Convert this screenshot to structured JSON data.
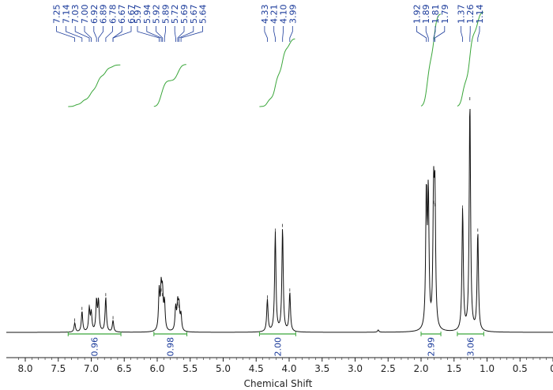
{
  "chart_data": {
    "type": "line",
    "title": "",
    "xlabel": "Chemical Shift",
    "ylabel": "",
    "xlim": [
      8.25,
      0.0
    ],
    "x_reversed": true,
    "grid": false,
    "legend": "none",
    "x_ticks": [
      "8.0",
      "7.5",
      "7.0",
      "6.5",
      "6.0",
      "5.5",
      "5.0",
      "4.5",
      "4.0",
      "3.5",
      "3.0",
      "2.5",
      "2.0",
      "1.5",
      "1.0",
      "0.5",
      "0"
    ],
    "x_tick_values": [
      8.0,
      7.5,
      7.0,
      6.5,
      6.0,
      5.5,
      5.0,
      4.5,
      4.0,
      3.5,
      3.0,
      2.5,
      2.0,
      1.5,
      1.0,
      0.5,
      0.0
    ],
    "peak_groups": [
      {
        "labels": [
          "7.25",
          "7.14",
          "7.03",
          "7.00",
          "6.92",
          "6.89",
          "6.78",
          "6.67",
          "6.67"
        ]
      },
      {
        "labels": [
          "5.97",
          "5.94",
          "5.92",
          "5.89",
          "5.72",
          "5.69",
          "5.67",
          "5.64"
        ]
      },
      {
        "labels": [
          "4.33",
          "4.21",
          "4.10",
          "3.99"
        ]
      },
      {
        "labels": [
          "1.92",
          "1.89",
          "1.81",
          "1.79"
        ]
      },
      {
        "labels": [
          "1.37",
          "1.26",
          "1.14"
        ]
      }
    ],
    "peaks": [
      {
        "shift": 7.25,
        "height": 0.04
      },
      {
        "shift": 7.14,
        "height": 0.09
      },
      {
        "shift": 7.03,
        "height": 0.1
      },
      {
        "shift": 7.0,
        "height": 0.08
      },
      {
        "shift": 6.92,
        "height": 0.13
      },
      {
        "shift": 6.89,
        "height": 0.13
      },
      {
        "shift": 6.78,
        "height": 0.15
      },
      {
        "shift": 6.67,
        "height": 0.05
      },
      {
        "shift": 5.97,
        "height": 0.17
      },
      {
        "shift": 5.94,
        "height": 0.17
      },
      {
        "shift": 5.92,
        "height": 0.15
      },
      {
        "shift": 5.89,
        "height": 0.12
      },
      {
        "shift": 5.72,
        "height": 0.1
      },
      {
        "shift": 5.69,
        "height": 0.11
      },
      {
        "shift": 5.67,
        "height": 0.1
      },
      {
        "shift": 5.64,
        "height": 0.07
      },
      {
        "shift": 4.33,
        "height": 0.14
      },
      {
        "shift": 4.21,
        "height": 0.43
      },
      {
        "shift": 4.1,
        "height": 0.45
      },
      {
        "shift": 3.99,
        "height": 0.17
      },
      {
        "shift": 2.65,
        "height": 0.01
      },
      {
        "shift": 1.92,
        "height": 0.58
      },
      {
        "shift": 1.89,
        "height": 0.57
      },
      {
        "shift": 1.81,
        "height": 0.55
      },
      {
        "shift": 1.79,
        "height": 0.54
      },
      {
        "shift": 1.37,
        "height": 0.53
      },
      {
        "shift": 1.26,
        "height": 1.0
      },
      {
        "shift": 1.14,
        "height": 0.43
      }
    ],
    "integrals": [
      {
        "from": 7.35,
        "to": 6.55,
        "value": "0.96"
      },
      {
        "from": 6.05,
        "to": 5.55,
        "value": "0.98"
      },
      {
        "from": 4.45,
        "to": 3.9,
        "value": "2.00"
      },
      {
        "from": 2.0,
        "to": 1.7,
        "value": "2.99"
      },
      {
        "from": 1.45,
        "to": 1.05,
        "value": "3.06"
      }
    ]
  },
  "colors": {
    "spectrum": "#111111",
    "peak_labels": "#1a3a9a",
    "integral_curves": "#3aa63a",
    "integral_marks": "#3aa63a",
    "axis": "#222222"
  }
}
